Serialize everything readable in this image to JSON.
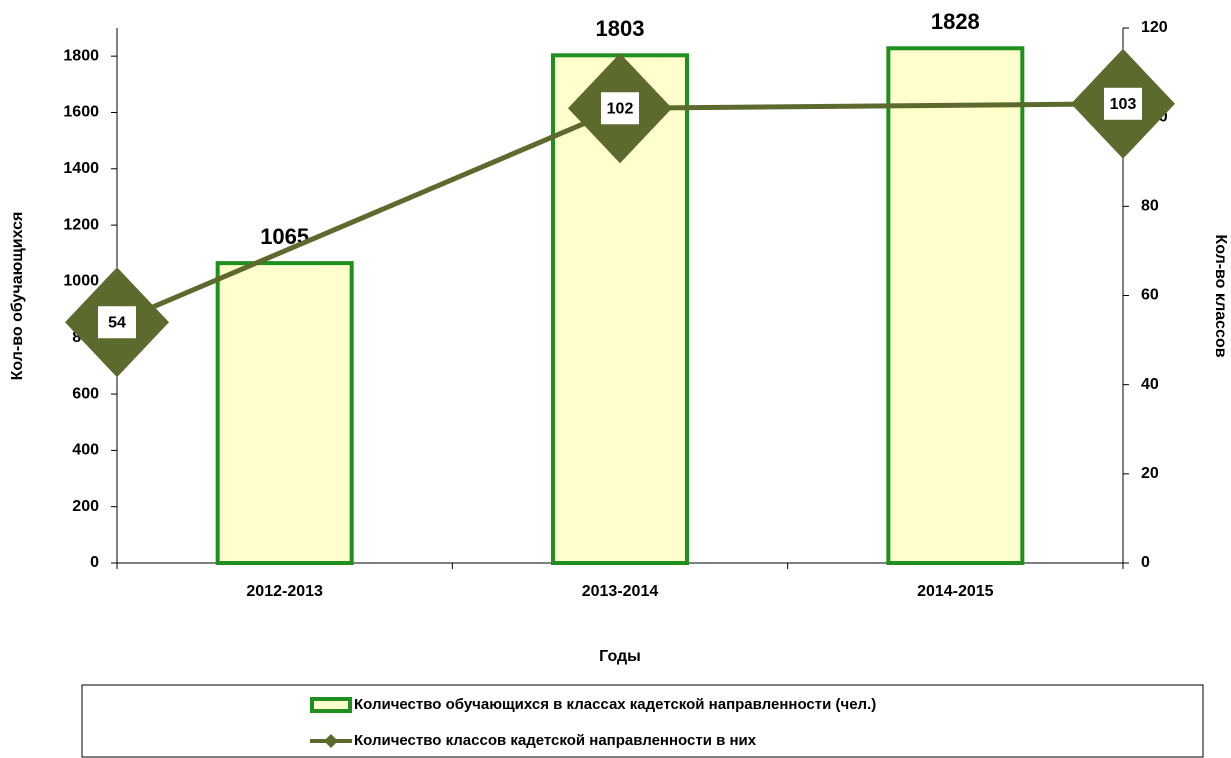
{
  "chart_data": {
    "type": "bar-line",
    "categories": [
      "2012-2013",
      "2013-2014",
      "2014-2015"
    ],
    "x_label": "Годы",
    "y_label": "Кол-во обучающихся",
    "y2_label": "Кол-во классов",
    "series": [
      {
        "name": "Количество обучающихся в классах кадетской направленности (чел.)",
        "type": "bar",
        "color": "#ffffcc",
        "edge_color": "#1f8f1f",
        "values": [
          1065,
          1803,
          1828
        ]
      },
      {
        "name": "Количество классов кадетской направленности в них",
        "type": "line",
        "axis": "y2",
        "color": "#5c6a2e",
        "values": [
          54,
          102,
          103
        ]
      }
    ],
    "ylim": [
      0,
      1900
    ],
    "yticks": [
      0,
      200,
      400,
      600,
      800,
      1000,
      1200,
      1400,
      1600,
      1800
    ],
    "y2lim": [
      0,
      120
    ],
    "y2ticks": [
      0,
      20,
      40,
      60,
      80,
      100,
      120
    ],
    "legend": "bottom"
  }
}
